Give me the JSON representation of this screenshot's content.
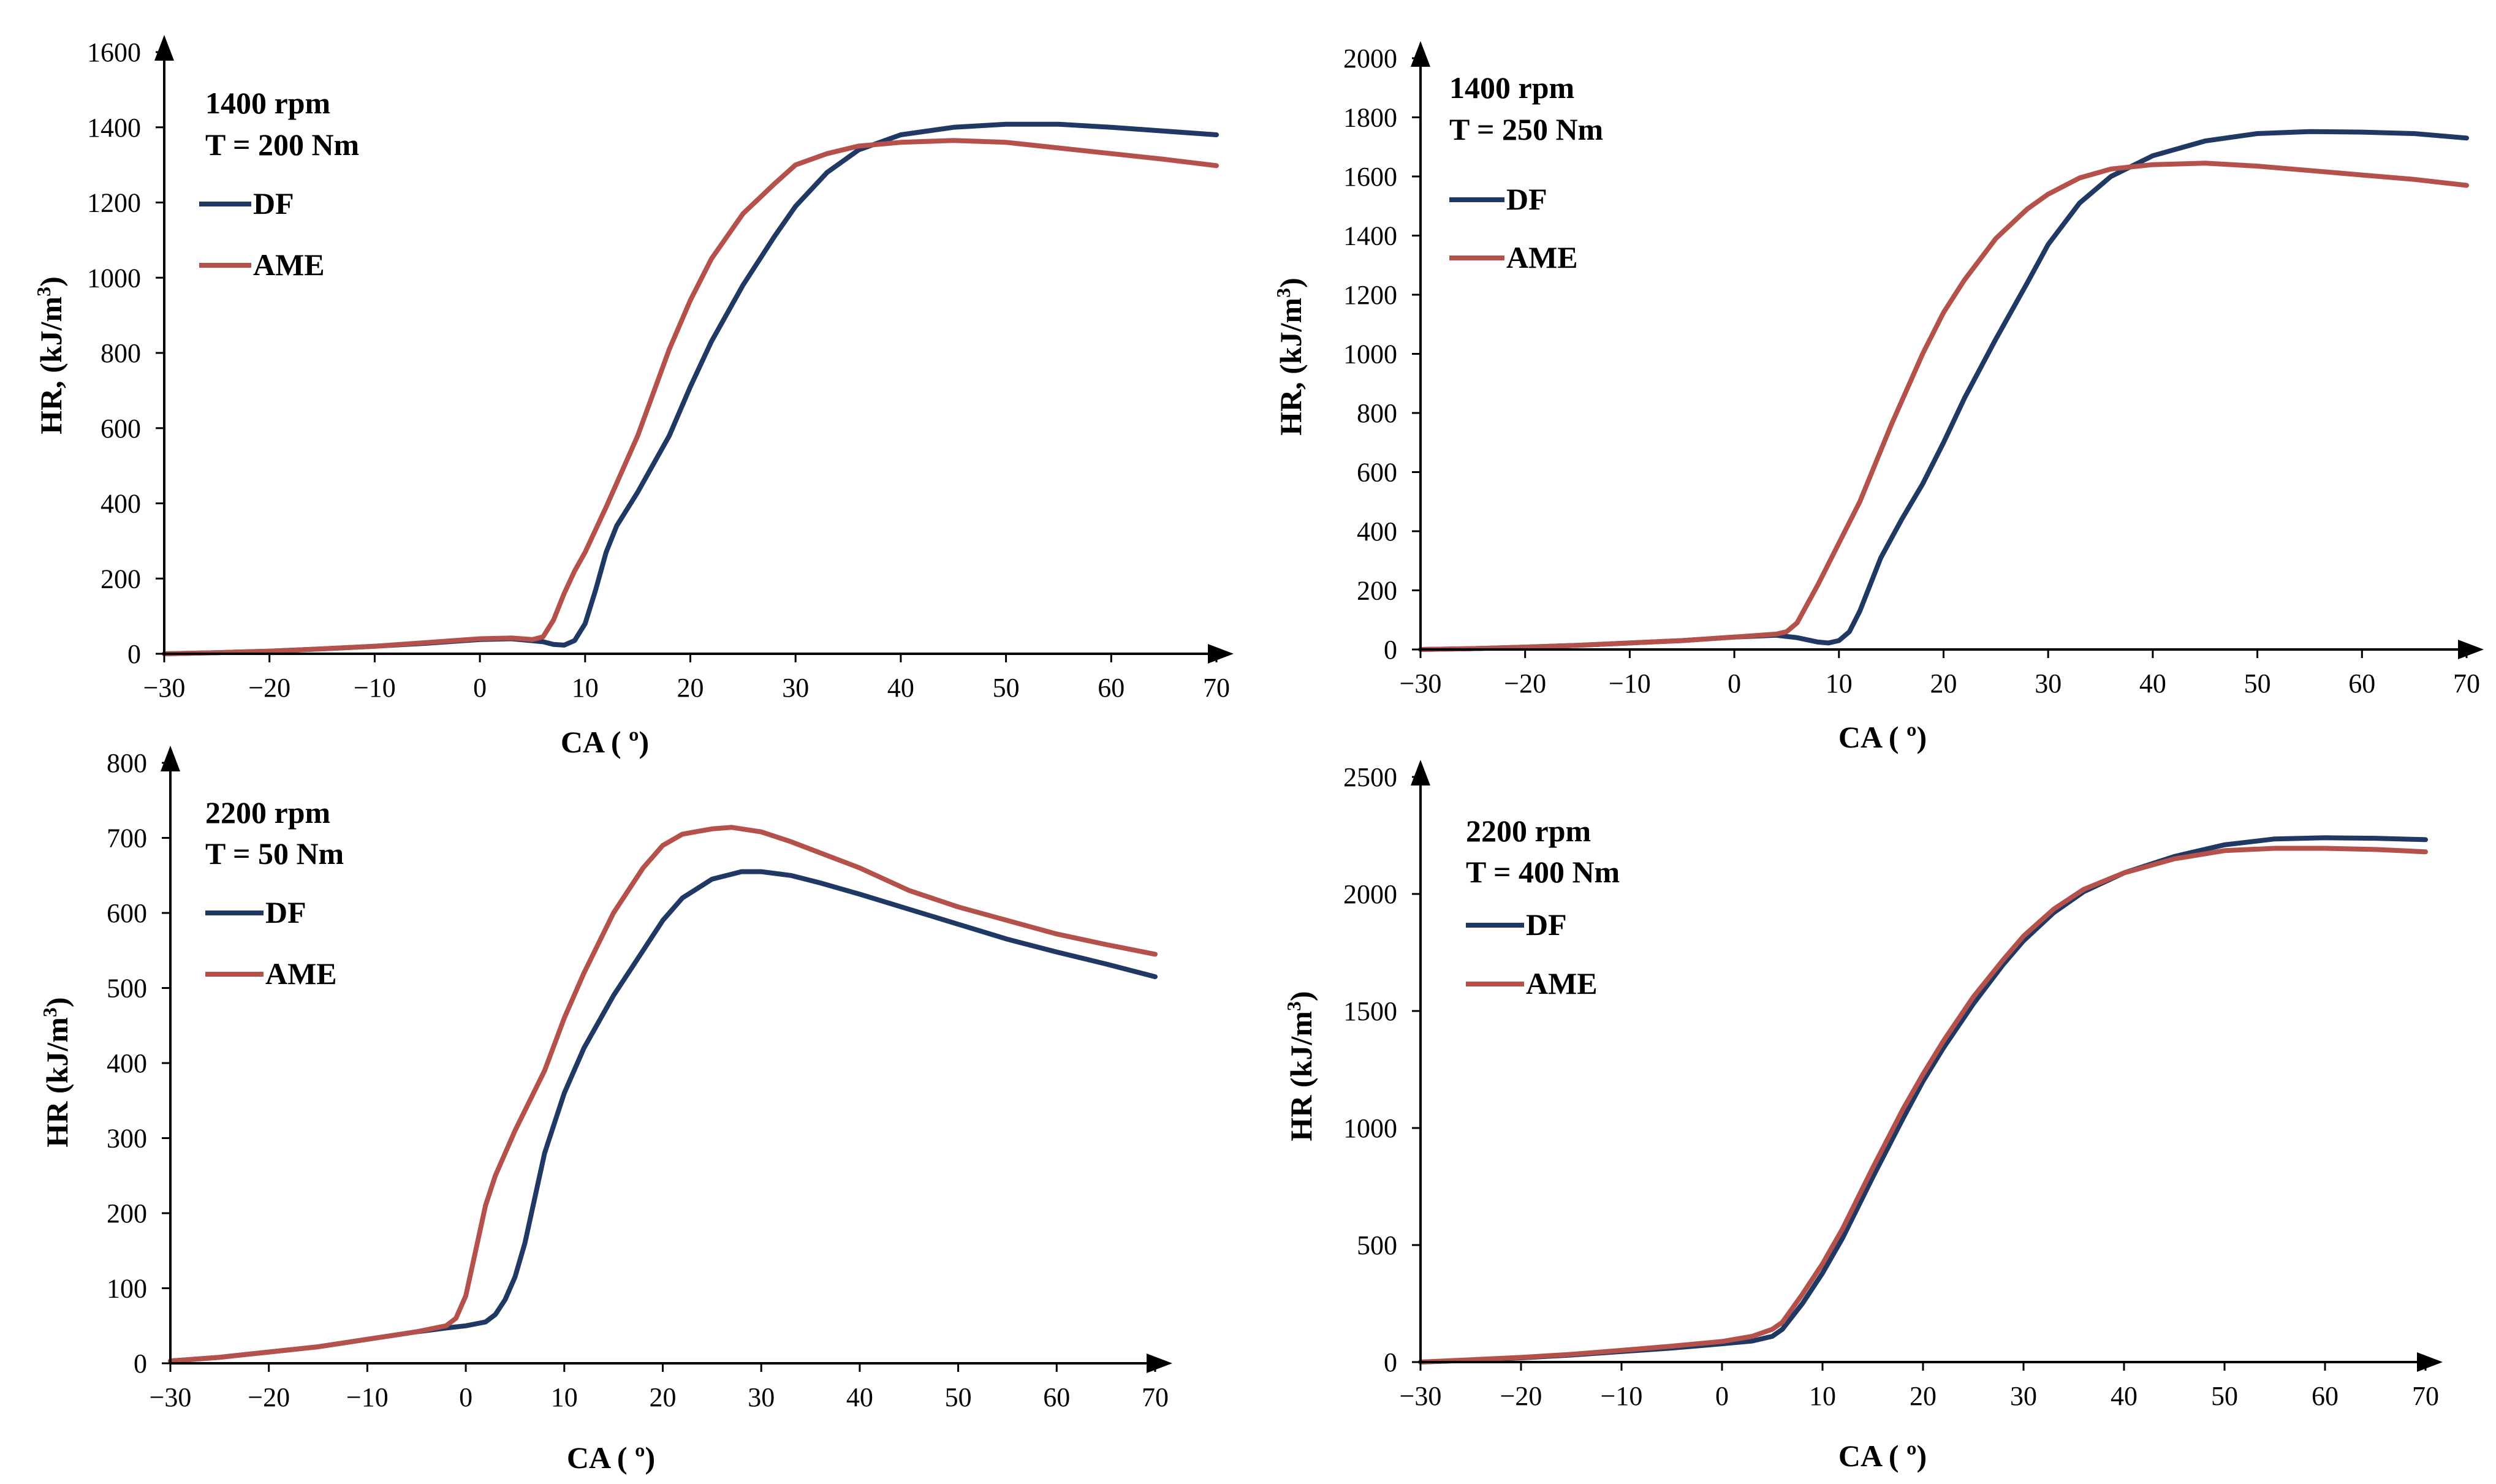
{
  "chart_data": [
    {
      "type": "line",
      "id": "top-left",
      "annotations": [
        "1400 rpm",
        "T = 200 Nm"
      ],
      "xlabel": "CA ( º)",
      "ylabel": "HR, (kJ/m",
      "ylabel_sup": "3",
      "ylabel_close": ")",
      "xlim": [
        -30,
        70
      ],
      "ylim": [
        0,
        1600
      ],
      "xticks": [
        -30,
        -20,
        -10,
        0,
        10,
        20,
        30,
        40,
        50,
        60,
        70
      ],
      "yticks": [
        0,
        200,
        400,
        600,
        800,
        1000,
        1200,
        1400,
        1600
      ],
      "series": [
        {
          "name": "DF",
          "color": "#1F3864",
          "x": [
            -30,
            -25,
            -20,
            -15,
            -10,
            -5,
            0,
            3,
            6,
            7,
            8,
            9,
            10,
            11,
            12,
            13,
            15,
            18,
            20,
            22,
            25,
            28,
            30,
            33,
            36,
            40,
            45,
            50,
            55,
            60,
            65,
            70
          ],
          "y": [
            0,
            3,
            7,
            13,
            20,
            28,
            38,
            40,
            32,
            25,
            23,
            35,
            80,
            170,
            270,
            340,
            430,
            580,
            710,
            830,
            980,
            1110,
            1190,
            1280,
            1340,
            1380,
            1400,
            1408,
            1408,
            1400,
            1390,
            1380
          ]
        },
        {
          "name": "AME",
          "color": "#B5514B",
          "x": [
            -30,
            -25,
            -20,
            -15,
            -10,
            -5,
            0,
            3,
            5,
            6,
            7,
            8,
            9,
            10,
            12,
            15,
            18,
            20,
            22,
            25,
            28,
            30,
            33,
            36,
            40,
            45,
            50,
            55,
            60,
            65,
            70
          ],
          "y": [
            0,
            3,
            7,
            13,
            20,
            30,
            40,
            42,
            38,
            45,
            90,
            160,
            220,
            270,
            390,
            580,
            810,
            940,
            1050,
            1170,
            1250,
            1300,
            1330,
            1350,
            1360,
            1365,
            1360,
            1345,
            1330,
            1315,
            1298
          ]
        }
      ]
    },
    {
      "type": "line",
      "id": "top-right",
      "annotations": [
        "1400 rpm",
        "T = 250 Nm"
      ],
      "xlabel": "CA ( º)",
      "ylabel": "HR, (kJ/m",
      "ylabel_sup": "3",
      "ylabel_close": ")",
      "xlim": [
        -30,
        70
      ],
      "ylim": [
        0,
        2000
      ],
      "xticks": [
        -30,
        -20,
        -10,
        0,
        10,
        20,
        30,
        40,
        50,
        60,
        70
      ],
      "yticks": [
        0,
        200,
        400,
        600,
        800,
        1000,
        1200,
        1400,
        1600,
        1800,
        2000
      ],
      "series": [
        {
          "name": "DF",
          "color": "#1F3864",
          "x": [
            -30,
            -25,
            -20,
            -15,
            -10,
            -5,
            0,
            4,
            6,
            8,
            9,
            10,
            11,
            12,
            13,
            14,
            16,
            18,
            20,
            22,
            25,
            28,
            30,
            33,
            36,
            40,
            45,
            50,
            55,
            60,
            65,
            70
          ],
          "y": [
            0,
            3,
            8,
            14,
            22,
            30,
            42,
            48,
            40,
            25,
            22,
            30,
            60,
            130,
            220,
            310,
            440,
            560,
            700,
            850,
            1050,
            1240,
            1370,
            1510,
            1600,
            1670,
            1720,
            1745,
            1752,
            1750,
            1745,
            1730
          ]
        },
        {
          "name": "AME",
          "color": "#B5514B",
          "x": [
            -30,
            -25,
            -20,
            -15,
            -10,
            -5,
            0,
            4,
            5,
            6,
            8,
            10,
            12,
            15,
            18,
            20,
            22,
            25,
            28,
            30,
            33,
            36,
            40,
            45,
            50,
            55,
            60,
            65,
            70
          ],
          "y": [
            0,
            3,
            8,
            14,
            22,
            30,
            42,
            52,
            60,
            90,
            220,
            360,
            500,
            760,
            1000,
            1140,
            1250,
            1390,
            1490,
            1540,
            1595,
            1625,
            1640,
            1645,
            1635,
            1620,
            1605,
            1590,
            1570
          ]
        }
      ]
    },
    {
      "type": "line",
      "id": "bottom-left",
      "annotations": [
        "2200 rpm",
        "T = 50 Nm"
      ],
      "xlabel": "CA ( º)",
      "ylabel": "HR (kJ/m",
      "ylabel_sup": "3",
      "ylabel_close": ")",
      "xlim": [
        -30,
        70
      ],
      "ylim": [
        0,
        800
      ],
      "xticks": [
        -30,
        -20,
        -10,
        0,
        10,
        20,
        30,
        40,
        50,
        60,
        70
      ],
      "yticks": [
        0,
        100,
        200,
        300,
        400,
        500,
        600,
        700,
        800
      ],
      "series": [
        {
          "name": "DF",
          "color": "#1F3864",
          "x": [
            -30,
            -25,
            -20,
            -15,
            -10,
            -5,
            -2,
            0,
            2,
            3,
            4,
            5,
            6,
            7,
            8,
            10,
            12,
            15,
            18,
            20,
            22,
            25,
            28,
            30,
            33,
            36,
            40,
            45,
            50,
            55,
            60,
            65,
            70
          ],
          "y": [
            3,
            8,
            15,
            22,
            32,
            42,
            47,
            50,
            55,
            65,
            85,
            115,
            160,
            220,
            280,
            360,
            420,
            490,
            550,
            590,
            620,
            645,
            655,
            655,
            650,
            640,
            625,
            605,
            585,
            565,
            548,
            532,
            515
          ]
        },
        {
          "name": "AME",
          "color": "#B5514B",
          "x": [
            -30,
            -25,
            -20,
            -15,
            -10,
            -5,
            -2,
            -1,
            0,
            1,
            2,
            3,
            5,
            8,
            10,
            12,
            15,
            18,
            20,
            22,
            25,
            27,
            30,
            33,
            36,
            40,
            45,
            50,
            55,
            60,
            65,
            70
          ],
          "y": [
            3,
            8,
            15,
            22,
            32,
            42,
            50,
            60,
            90,
            150,
            210,
            250,
            310,
            390,
            460,
            520,
            600,
            660,
            690,
            705,
            712,
            714,
            708,
            695,
            680,
            660,
            630,
            608,
            590,
            572,
            558,
            545
          ]
        }
      ]
    },
    {
      "type": "line",
      "id": "bottom-right",
      "annotations": [
        "2200 rpm",
        "T = 400 Nm"
      ],
      "xlabel": "CA ( º)",
      "ylabel": "HR (kJ/m",
      "ylabel_sup": "3",
      "ylabel_close": ")",
      "xlim": [
        -30,
        70
      ],
      "ylim": [
        0,
        2500
      ],
      "xticks": [
        -30,
        -20,
        -10,
        0,
        10,
        20,
        30,
        40,
        50,
        60,
        70
      ],
      "yticks": [
        0,
        500,
        1000,
        1500,
        2000,
        2500
      ],
      "series": [
        {
          "name": "DF",
          "color": "#1F3864",
          "x": [
            -30,
            -25,
            -20,
            -15,
            -10,
            -5,
            0,
            3,
            5,
            6,
            8,
            10,
            12,
            15,
            18,
            20,
            22,
            25,
            28,
            30,
            33,
            36,
            40,
            45,
            50,
            55,
            60,
            65,
            70
          ],
          "y": [
            0,
            8,
            18,
            30,
            45,
            60,
            78,
            90,
            110,
            140,
            250,
            380,
            530,
            790,
            1040,
            1200,
            1340,
            1530,
            1700,
            1800,
            1920,
            2010,
            2090,
            2160,
            2210,
            2235,
            2240,
            2238,
            2232
          ]
        },
        {
          "name": "AME",
          "color": "#B5514B",
          "x": [
            -30,
            -25,
            -20,
            -15,
            -10,
            -5,
            0,
            3,
            5,
            6,
            8,
            10,
            12,
            15,
            18,
            20,
            22,
            25,
            28,
            30,
            33,
            36,
            40,
            45,
            50,
            55,
            60,
            65,
            70
          ],
          "y": [
            0,
            10,
            20,
            33,
            50,
            68,
            88,
            110,
            140,
            170,
            290,
            420,
            570,
            830,
            1080,
            1230,
            1370,
            1560,
            1720,
            1820,
            1935,
            2020,
            2090,
            2150,
            2185,
            2195,
            2195,
            2190,
            2180
          ]
        }
      ]
    }
  ]
}
